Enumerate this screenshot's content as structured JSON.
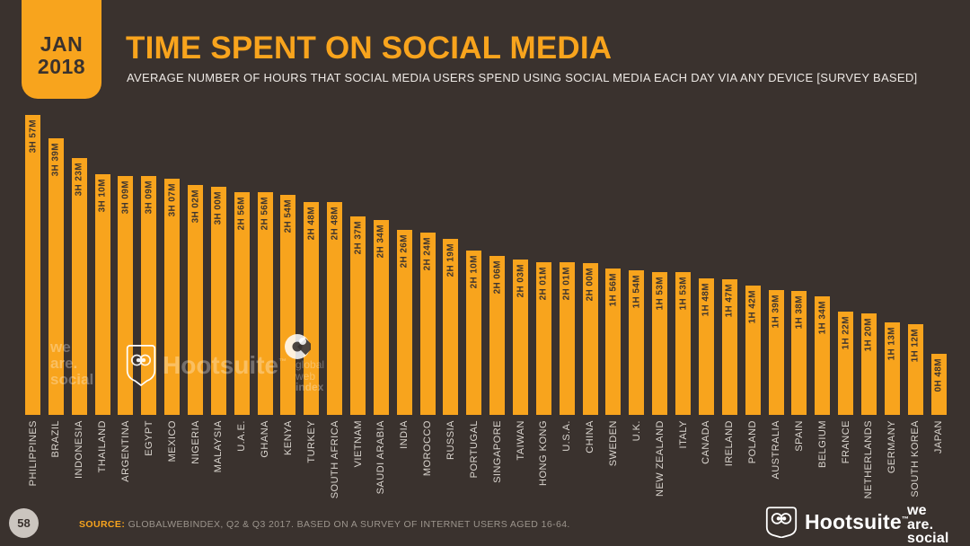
{
  "colors": {
    "background": "#3A322E",
    "accent_orange": "#F8A41D",
    "bar_value_text": "#3E352F",
    "country_label_text": "#DAD5CF",
    "subtitle_text": "#EDE9E5",
    "source_text": "#9C958D",
    "page_badge_bg": "#CBC5BF",
    "logo_white": "#FFFFFF"
  },
  "header": {
    "date_month": "JAN",
    "date_year": "2018",
    "title": "TIME SPENT ON SOCIAL MEDIA",
    "subtitle": "AVERAGE NUMBER OF HOURS THAT SOCIAL MEDIA USERS SPEND USING SOCIAL MEDIA EACH DAY VIA ANY DEVICE [SURVEY BASED]"
  },
  "chart_data": {
    "type": "bar",
    "title": "TIME SPENT ON SOCIAL MEDIA",
    "xlabel": "",
    "ylabel": "",
    "unit": "minutes per day (labels shown as H/M)",
    "ylim": [
      0,
      240
    ],
    "grid": false,
    "legend": "none",
    "categories": [
      "PHILIPPINES",
      "BRAZIL",
      "INDONESIA",
      "THAILAND",
      "ARGENTINA",
      "EGYPT",
      "MEXICO",
      "NIGERIA",
      "MALAYSIA",
      "U.A.E.",
      "GHANA",
      "KENYA",
      "TURKEY",
      "SOUTH AFRICA",
      "VIETNAM",
      "SAUDI ARABIA",
      "INDIA",
      "MOROCCO",
      "RUSSIA",
      "PORTUGAL",
      "SINGAPORE",
      "TAIWAN",
      "HONG KONG",
      "U.S.A.",
      "CHINA",
      "SWEDEN",
      "U.K.",
      "NEW ZEALAND",
      "ITALY",
      "CANADA",
      "IRELAND",
      "POLAND",
      "AUSTRALIA",
      "SPAIN",
      "BELGIUM",
      "FRANCE",
      "NETHERLANDS",
      "GERMANY",
      "SOUTH KOREA",
      "JAPAN"
    ],
    "values": [
      237,
      219,
      203,
      190,
      189,
      189,
      187,
      182,
      180,
      176,
      176,
      174,
      168,
      168,
      157,
      154,
      146,
      144,
      139,
      130,
      126,
      123,
      121,
      121,
      120,
      116,
      114,
      113,
      113,
      108,
      107,
      102,
      99,
      98,
      94,
      82,
      80,
      73,
      72,
      48
    ],
    "value_labels": [
      "3H 57M",
      "3H 39M",
      "3H 23M",
      "3H 10M",
      "3H 09M",
      "3H 09M",
      "3H 07M",
      "3H 02M",
      "3H 00M",
      "2H 56M",
      "2H 56M",
      "2H 54M",
      "2H 48M",
      "2H 48M",
      "2H 37M",
      "2H 34M",
      "2H 26M",
      "2H 24M",
      "2H 19M",
      "2H 10M",
      "2H 06M",
      "2H 03M",
      "2H 01M",
      "2H 01M",
      "2H 00M",
      "1H 56M",
      "1H 54M",
      "1H 53M",
      "1H 53M",
      "1H 48M",
      "1H 47M",
      "1H 42M",
      "1H 39M",
      "1H 38M",
      "1H 34M",
      "1H 22M",
      "1H 20M",
      "1H 13M",
      "1H 12M",
      "0H 48M"
    ]
  },
  "watermarks": {
    "wearesocial_lines": [
      "we",
      "are.",
      "social"
    ],
    "hootsuite_label": "Hootsuite",
    "hootsuite_tm": "™",
    "gwi_lines": [
      "global",
      "web",
      "index"
    ]
  },
  "footer": {
    "page_number": "58",
    "source_label": "SOURCE:",
    "source_text": "GLOBALWEBINDEX, Q2 & Q3 2017. BASED ON A SURVEY OF INTERNET USERS AGED 16-64.",
    "hootsuite_label": "Hootsuite",
    "hootsuite_tm": "™",
    "wearesocial_lines": [
      "we",
      "are.",
      "social"
    ]
  }
}
